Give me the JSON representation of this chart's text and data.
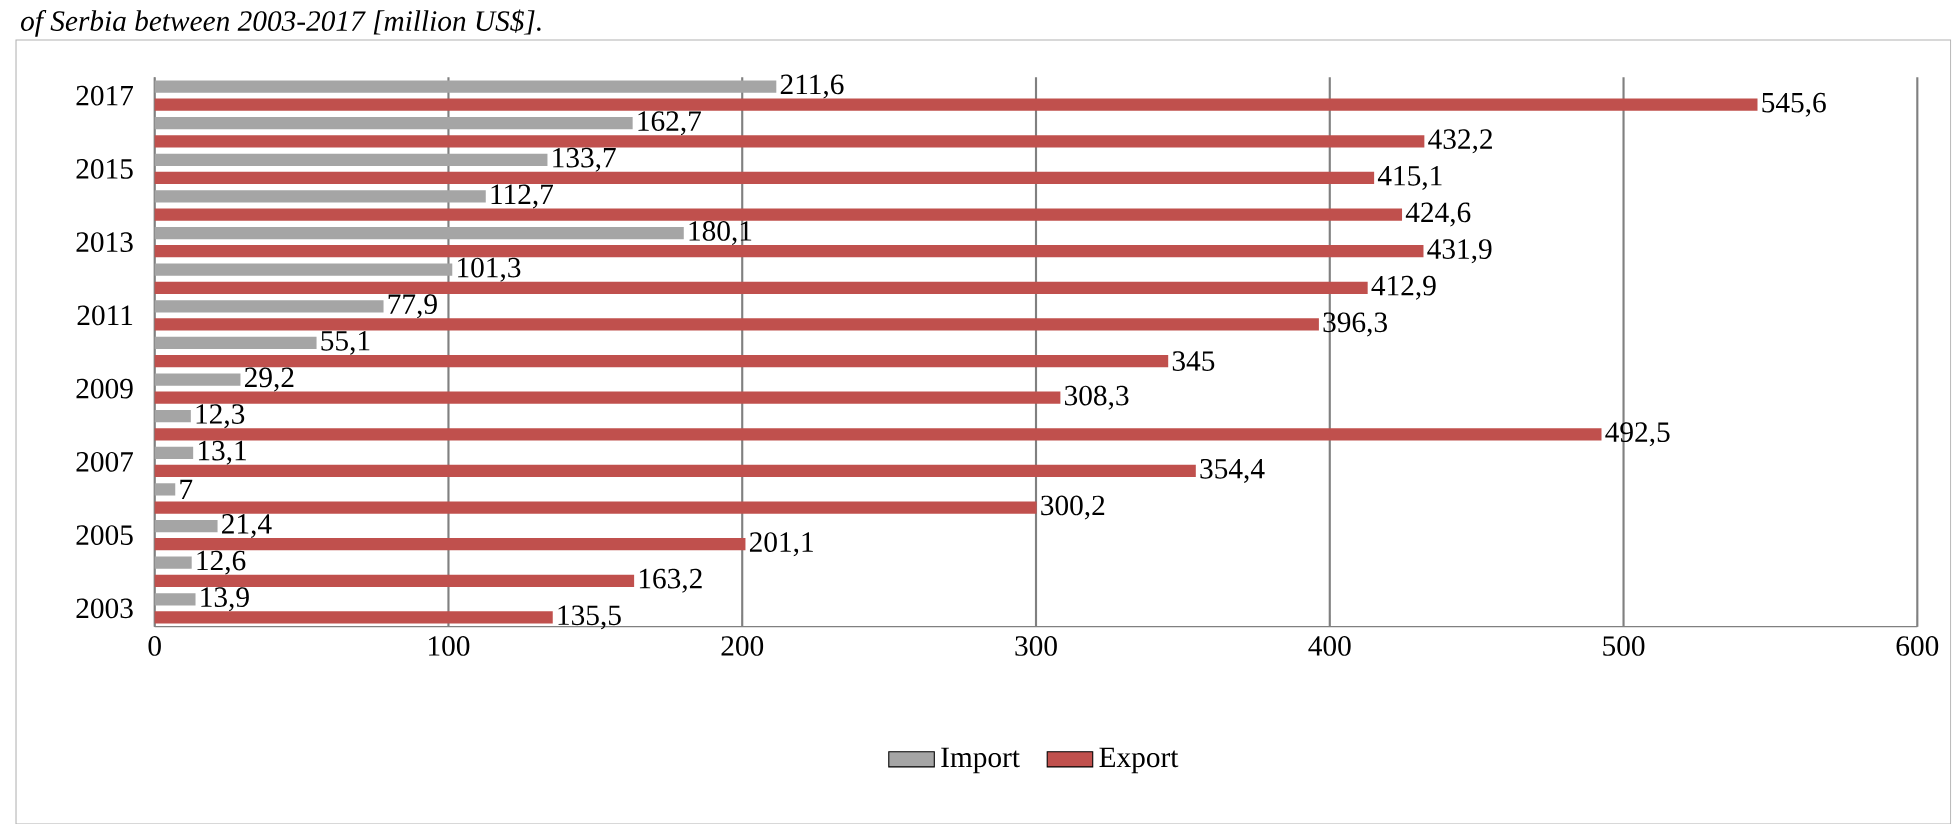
{
  "chart_data": {
    "type": "bar",
    "orientation": "horizontal",
    "title": "of Serbia between 2003-2017 [million US$].",
    "categories": [
      "2017",
      null,
      "2015",
      null,
      "2013",
      null,
      "2011",
      null,
      "2009",
      null,
      "2007",
      null,
      "2005",
      null,
      "2003"
    ],
    "series": [
      {
        "name": "Import",
        "color": "#a5a5a5",
        "values": [
          211.6,
          162.7,
          133.7,
          112.7,
          180.1,
          101.3,
          77.9,
          55.1,
          29.2,
          12.3,
          13.1,
          7,
          21.4,
          12.6,
          13.9
        ],
        "value_labels": [
          "211,6",
          "162,7",
          "133,7",
          "112,7",
          "180,1",
          "101,3",
          "77,9",
          "55,1",
          "29,2",
          "12,3",
          "13,1",
          "7",
          "21,4",
          "12,6",
          "13,9"
        ]
      },
      {
        "name": "Export",
        "color": "#c0504d",
        "values": [
          545.6,
          432.2,
          415.1,
          424.6,
          431.9,
          412.9,
          396.3,
          345,
          308.3,
          492.5,
          354.4,
          300.2,
          201.1,
          163.2,
          135.5
        ],
        "value_labels": [
          "545,6",
          "432,2",
          "415,1",
          "424,6",
          "431,9",
          "412,9",
          "396,3",
          "345",
          "308,3",
          "492,5",
          "354,4",
          "300,2",
          "201,1",
          "163,2",
          "135,5"
        ]
      }
    ],
    "xlim": [
      0,
      600
    ],
    "xticks": [
      0,
      100,
      200,
      300,
      400,
      500,
      600
    ],
    "grid": "x",
    "legend": "bottom"
  }
}
